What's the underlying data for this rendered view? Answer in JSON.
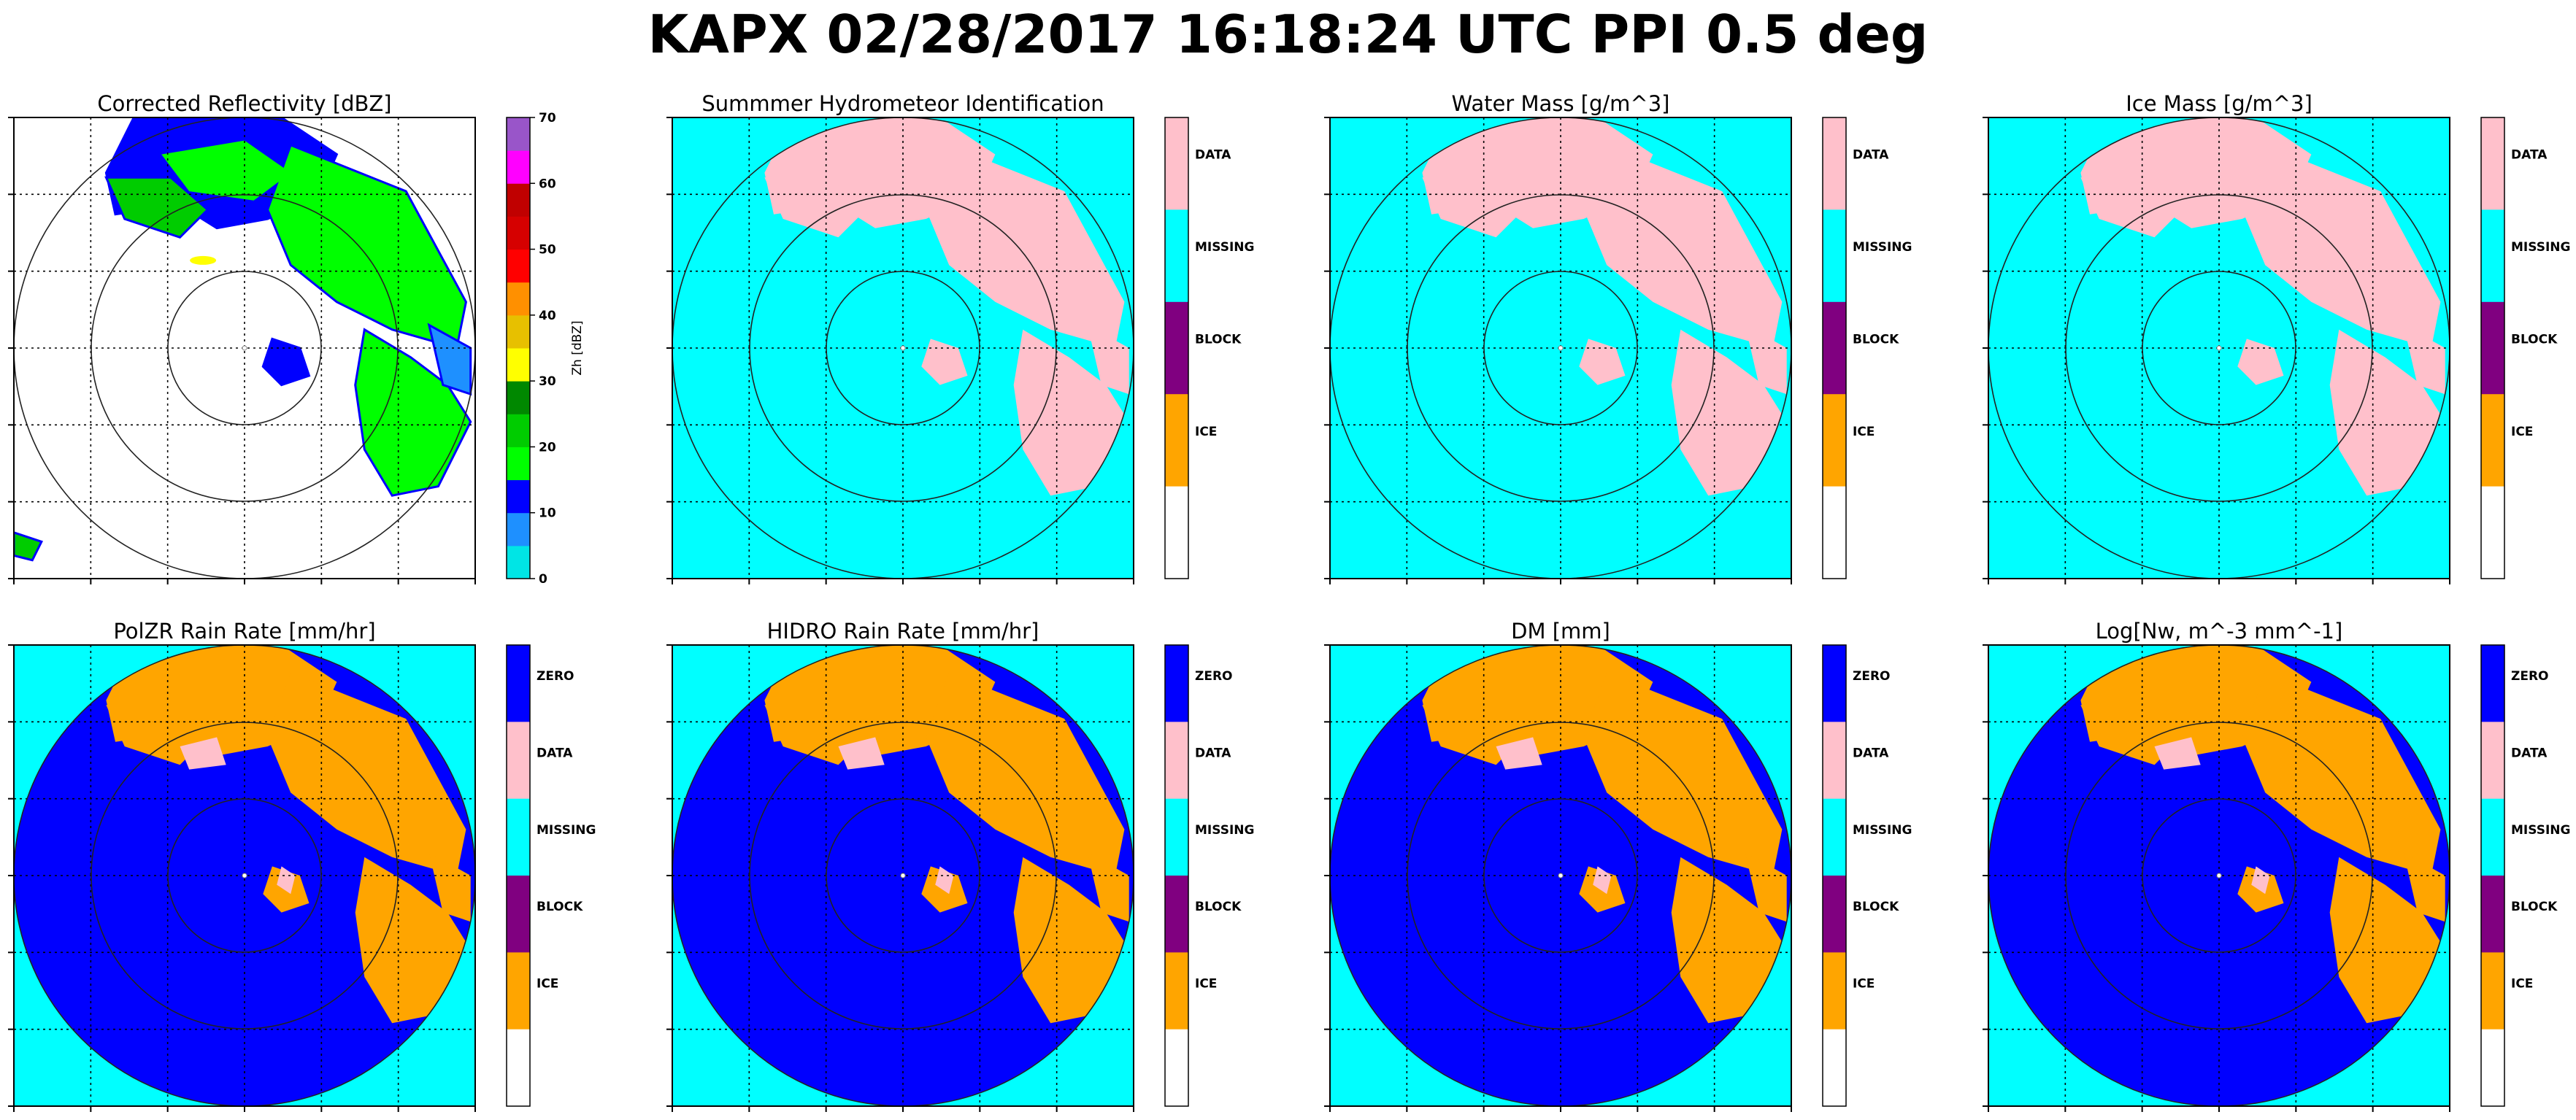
{
  "title": "KAPX 02/28/2017 16:18:24 UTC PPI 0.5 deg",
  "colors": {
    "radar_bg": "#00ffff",
    "zero": "#0000ff",
    "data": "#ffc0cb",
    "missing": "#00ffff",
    "block": "#800080",
    "ice": "#ffa500",
    "none": "#ffffff"
  },
  "chart_data": [
    {
      "type": "heatmap",
      "title": "Corrected Reflectivity [dBZ]",
      "colorbar": {
        "kind": "continuous",
        "label": "Zh [dBZ]",
        "ticks": [
          "0",
          "10",
          "20",
          "30",
          "40",
          "50",
          "60",
          "70"
        ],
        "bins": [
          {
            "from": 0,
            "to": 5,
            "color": "#00e5e5"
          },
          {
            "from": 5,
            "to": 10,
            "color": "#1e90ff"
          },
          {
            "from": 10,
            "to": 15,
            "color": "#0000ff"
          },
          {
            "from": 15,
            "to": 20,
            "color": "#00ff00"
          },
          {
            "from": 20,
            "to": 25,
            "color": "#00cc00"
          },
          {
            "from": 25,
            "to": 30,
            "color": "#008800"
          },
          {
            "from": 30,
            "to": 35,
            "color": "#ffff00"
          },
          {
            "from": 35,
            "to": 40,
            "color": "#e7c000"
          },
          {
            "from": 40,
            "to": 45,
            "color": "#ff9000"
          },
          {
            "from": 45,
            "to": 50,
            "color": "#ff0000"
          },
          {
            "from": 50,
            "to": 55,
            "color": "#d60000"
          },
          {
            "from": 55,
            "to": 60,
            "color": "#c00000"
          },
          {
            "from": 60,
            "to": 65,
            "color": "#ff00ff"
          },
          {
            "from": 65,
            "to": 70,
            "color": "#9955c9"
          }
        ]
      },
      "background": "none",
      "grid": true
    },
    {
      "type": "heatmap",
      "title": "Summmer Hydrometeor Identification",
      "colorbar": {
        "kind": "categorical",
        "labels": [
          "DATA",
          "MISSING",
          "BLOCK",
          "ICE",
          ""
        ],
        "colors": [
          "data",
          "missing",
          "block",
          "ice",
          "none"
        ]
      },
      "background": "missing",
      "echo": "data",
      "grid": true
    },
    {
      "type": "heatmap",
      "title": "Water Mass [g/m^3]",
      "colorbar": {
        "kind": "categorical",
        "labels": [
          "DATA",
          "MISSING",
          "BLOCK",
          "ICE",
          ""
        ],
        "colors": [
          "data",
          "missing",
          "block",
          "ice",
          "none"
        ]
      },
      "background": "missing",
      "echo": "data",
      "grid": true
    },
    {
      "type": "heatmap",
      "title": "Ice Mass [g/m^3]",
      "colorbar": {
        "kind": "categorical",
        "labels": [
          "DATA",
          "MISSING",
          "BLOCK",
          "ICE",
          ""
        ],
        "colors": [
          "data",
          "missing",
          "block",
          "ice",
          "none"
        ]
      },
      "background": "missing",
      "echo": "data",
      "grid": true
    },
    {
      "type": "heatmap",
      "title": "PolZR Rain Rate [mm/hr]",
      "colorbar": {
        "kind": "categorical",
        "labels": [
          "ZERO",
          "DATA",
          "MISSING",
          "BLOCK",
          "ICE",
          ""
        ],
        "colors": [
          "zero",
          "data",
          "missing",
          "block",
          "ice",
          "none"
        ]
      },
      "background": "zero",
      "echo": "ice",
      "grid": true
    },
    {
      "type": "heatmap",
      "title": "HIDRO Rain Rate [mm/hr]",
      "colorbar": {
        "kind": "categorical",
        "labels": [
          "ZERO",
          "DATA",
          "MISSING",
          "BLOCK",
          "ICE",
          ""
        ],
        "colors": [
          "zero",
          "data",
          "missing",
          "block",
          "ice",
          "none"
        ]
      },
      "background": "zero",
      "echo": "ice",
      "grid": true
    },
    {
      "type": "heatmap",
      "title": "DM [mm]",
      "colorbar": {
        "kind": "categorical",
        "labels": [
          "ZERO",
          "DATA",
          "MISSING",
          "BLOCK",
          "ICE",
          ""
        ],
        "colors": [
          "zero",
          "data",
          "missing",
          "block",
          "ice",
          "none"
        ]
      },
      "background": "zero",
      "echo": "ice",
      "grid": true
    },
    {
      "type": "heatmap",
      "title": "Log[Nw, m^-3 mm^-1]",
      "colorbar": {
        "kind": "categorical",
        "labels": [
          "ZERO",
          "DATA",
          "MISSING",
          "BLOCK",
          "ICE",
          ""
        ],
        "colors": [
          "zero",
          "data",
          "missing",
          "block",
          "ice",
          "none"
        ]
      },
      "background": "zero",
      "echo": "ice",
      "grid": true
    }
  ]
}
